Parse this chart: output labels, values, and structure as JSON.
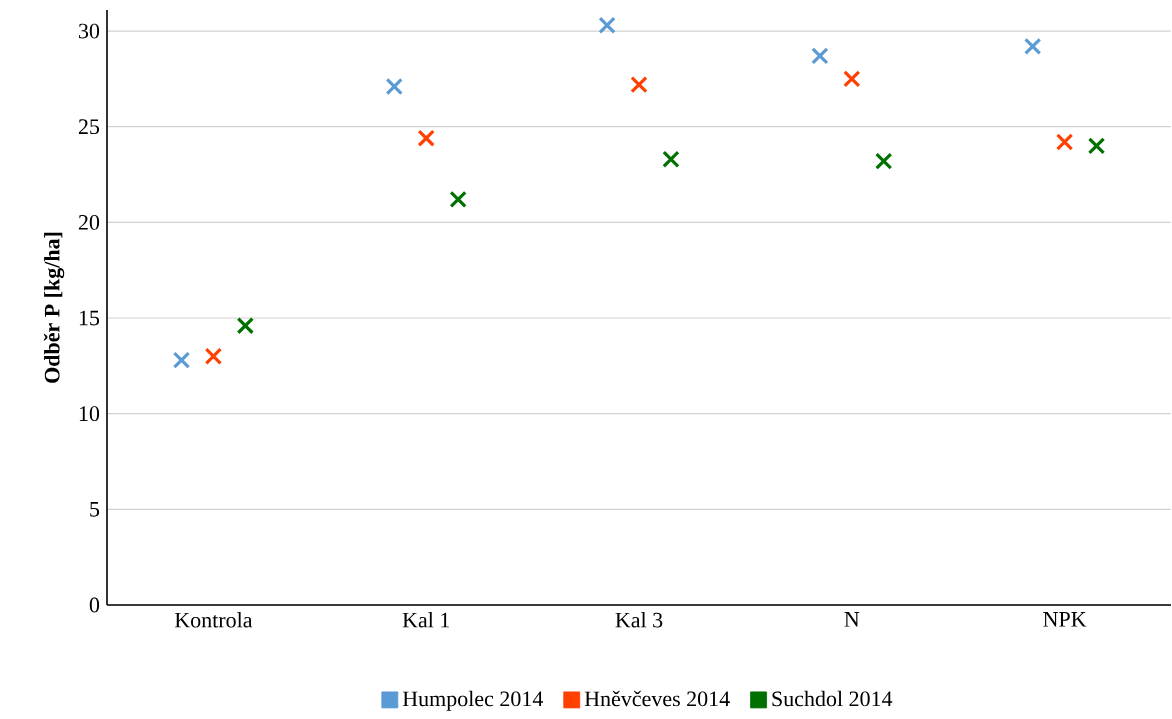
{
  "chart_data": {
    "type": "scatter",
    "ylabel": "Odběr P [kg/ha]",
    "categories": [
      "Kontrola",
      "Kal 1",
      "Kal 3",
      "N",
      "NPK"
    ],
    "series": [
      {
        "name": "Humpolec 2014",
        "color": "#5b9bd5",
        "values": [
          12.8,
          27.1,
          30.3,
          28.7,
          29.2
        ]
      },
      {
        "name": "Hněvčeves 2014",
        "color": "#ff4000",
        "values": [
          13.0,
          24.4,
          27.2,
          27.5,
          24.2
        ]
      },
      {
        "name": "Suchdol 2014",
        "color": "#007000",
        "values": [
          14.6,
          21.2,
          23.3,
          23.2,
          24.0
        ]
      }
    ],
    "ylim": [
      0,
      31.1
    ],
    "yticks": [
      0,
      5,
      10,
      15,
      20,
      25,
      30
    ],
    "grid": "y",
    "legend": "bottom",
    "marker": "cross"
  }
}
